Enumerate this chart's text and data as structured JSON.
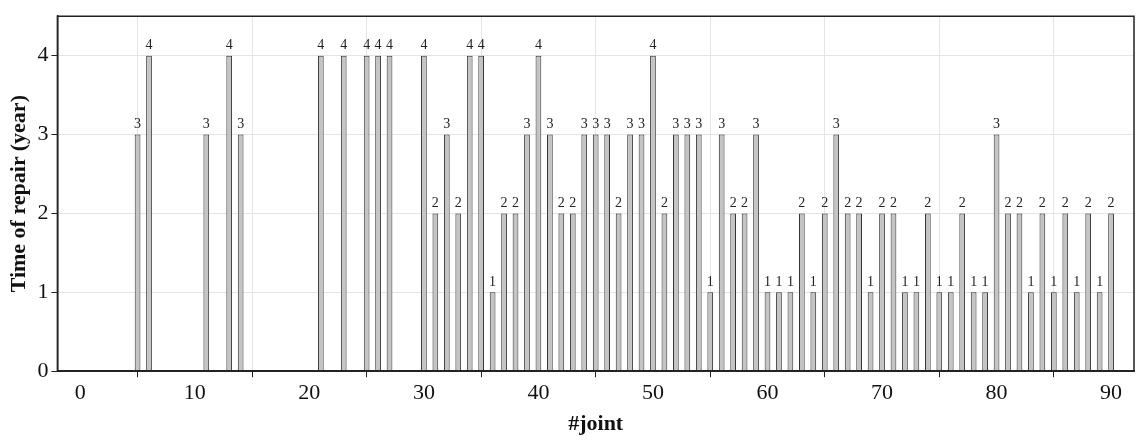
{
  "chart_data": {
    "type": "bar",
    "xlabel": "#joint",
    "ylabel": "Time of repair (year)",
    "x": [
      5,
      6,
      11,
      13,
      14,
      21,
      23,
      25,
      26,
      27,
      30,
      31,
      32,
      33,
      34,
      35,
      36,
      37,
      38,
      39,
      40,
      41,
      42,
      43,
      44,
      45,
      46,
      47,
      48,
      49,
      50,
      51,
      52,
      53,
      54,
      55,
      56,
      57,
      58,
      59,
      60,
      61,
      62,
      63,
      64,
      65,
      66,
      67,
      68,
      69,
      70,
      71,
      72,
      73,
      74,
      75,
      76,
      77,
      78,
      79,
      80,
      81,
      82,
      83,
      84,
      85,
      86,
      87,
      88,
      89,
      90
    ],
    "values": [
      3,
      4,
      3,
      4,
      3,
      4,
      4,
      4,
      4,
      4,
      4,
      2,
      3,
      2,
      4,
      4,
      1,
      2,
      2,
      3,
      4,
      3,
      2,
      2,
      3,
      3,
      3,
      2,
      3,
      3,
      4,
      2,
      3,
      3,
      3,
      1,
      3,
      2,
      2,
      3,
      1,
      1,
      1,
      2,
      1,
      2,
      3,
      2,
      2,
      1,
      2,
      2,
      1,
      1,
      2,
      1,
      1,
      2,
      1,
      1,
      3,
      2,
      2,
      1,
      2,
      1,
      2,
      1,
      2,
      1,
      2
    ],
    "color": "#c4c4c4",
    "xlim": [
      -2,
      92
    ],
    "xticks": [
      0,
      10,
      20,
      30,
      40,
      50,
      60,
      70,
      80,
      90
    ],
    "ylim": [
      0,
      4.5
    ],
    "yticks": [
      0,
      1,
      2,
      3,
      4
    ],
    "grid": true,
    "data_labels": true
  }
}
